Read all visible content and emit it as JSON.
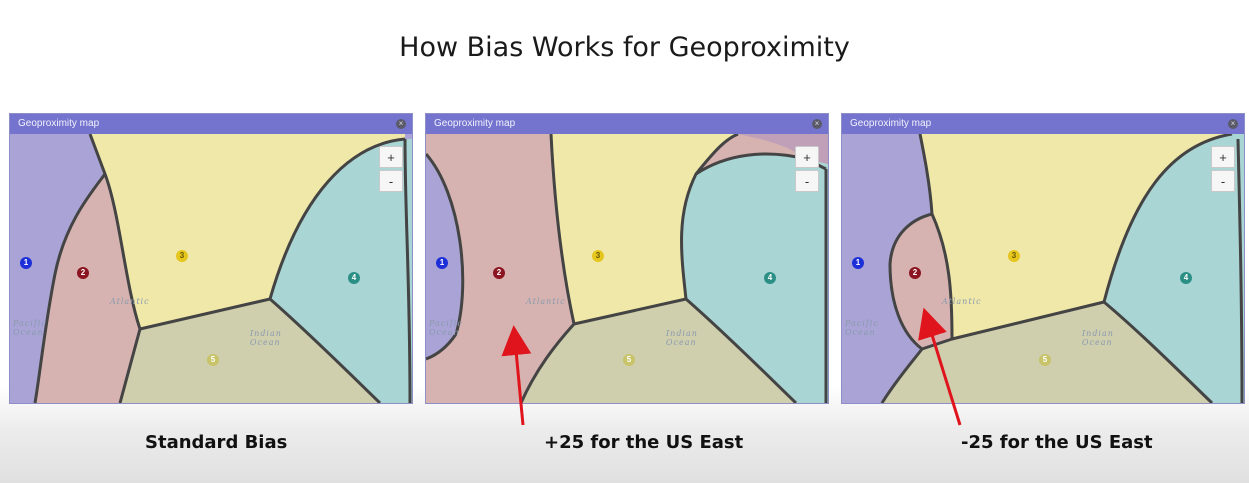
{
  "slide": {
    "title": "How Bias Works for Geoproximity"
  },
  "panels": [
    {
      "header": "Geoproximity map",
      "zoom_in": "+",
      "zoom_out": "-",
      "markers": [
        "1",
        "2",
        "3",
        "4",
        "5"
      ],
      "oceans": {
        "pacific": "Pacific\nOcean",
        "atlantic": "Atlantic",
        "indian": "Indian\nOcean"
      },
      "caption": "Standard Bias"
    },
    {
      "header": "Geoproximity map",
      "zoom_in": "+",
      "zoom_out": "-",
      "markers": [
        "1",
        "2",
        "3",
        "4",
        "5"
      ],
      "oceans": {
        "pacific": "Pacific\nOcean",
        "atlantic": "Atlantic",
        "indian": "Indian\nOcean"
      },
      "caption": "+25 for the US East"
    },
    {
      "header": "Geoproximity map",
      "zoom_in": "+",
      "zoom_out": "-",
      "markers": [
        "1",
        "2",
        "3",
        "4",
        "5"
      ],
      "oceans": {
        "pacific": "Pacific\nOcean",
        "atlantic": "Atlantic",
        "indian": "Indian\nOcean"
      },
      "caption": "-25 for the US East"
    }
  ],
  "colors": {
    "region1": "#a9a3d6",
    "region2": "#d6b3b0",
    "region3": "#f0e8a8",
    "region4": "#a9d6d4",
    "region5": "#cfcfae",
    "arrow": "#e0141c",
    "marker1": "#1d2fd8",
    "marker2": "#8b1520",
    "marker3": "#e6c51e",
    "marker4": "#2b8f86",
    "marker5": "#c9c46a"
  }
}
